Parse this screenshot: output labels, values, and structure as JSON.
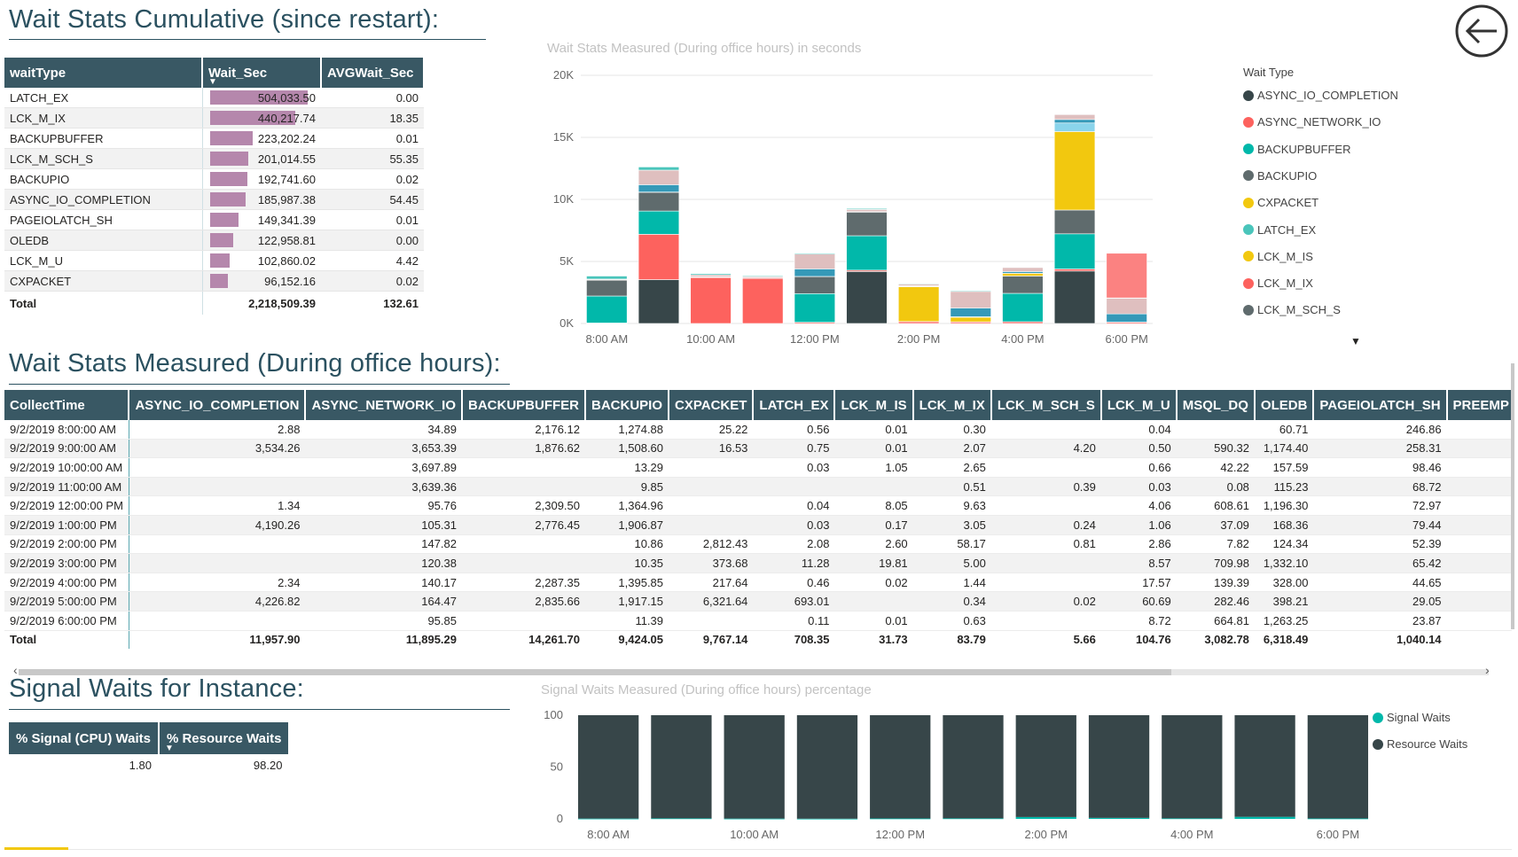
{
  "titles": {
    "cumulative": "Wait Stats Cumulative (since restart):",
    "measured": "Wait Stats Measured (During office hours):",
    "signal": "Signal Waits for Instance:"
  },
  "cumulative_table": {
    "headers": [
      "waitType",
      "Wait_Sec",
      "AVGWait_Sec"
    ],
    "rows": [
      {
        "waitType": "LATCH_EX",
        "wait": "504,033.50",
        "wait_val": 504033.5,
        "avg": "0.00"
      },
      {
        "waitType": "LCK_M_IX",
        "wait": "440,217.74",
        "wait_val": 440217.74,
        "avg": "18.35"
      },
      {
        "waitType": "BACKUPBUFFER",
        "wait": "223,202.24",
        "wait_val": 223202.24,
        "avg": "0.01"
      },
      {
        "waitType": "LCK_M_SCH_S",
        "wait": "201,014.55",
        "wait_val": 201014.55,
        "avg": "55.35"
      },
      {
        "waitType": "BACKUPIO",
        "wait": "192,741.60",
        "wait_val": 192741.6,
        "avg": "0.02"
      },
      {
        "waitType": "ASYNC_IO_COMPLETION",
        "wait": "185,987.38",
        "wait_val": 185987.38,
        "avg": "54.45"
      },
      {
        "waitType": "PAGEIOLATCH_SH",
        "wait": "149,341.39",
        "wait_val": 149341.39,
        "avg": "0.01"
      },
      {
        "waitType": "OLEDB",
        "wait": "122,958.81",
        "wait_val": 122958.81,
        "avg": "0.00"
      },
      {
        "waitType": "LCK_M_U",
        "wait": "102,860.02",
        "wait_val": 102860.02,
        "avg": "4.42"
      },
      {
        "waitType": "CXPACKET",
        "wait": "96,152.16",
        "wait_val": 96152.16,
        "avg": "0.02"
      }
    ],
    "total": {
      "label": "Total",
      "wait": "2,218,509.39",
      "avg": "132.61"
    }
  },
  "measured_table": {
    "headers": [
      "CollectTime",
      "ASYNC_IO_COMPLETION",
      "ASYNC_NETWORK_IO",
      "BACKUPBUFFER",
      "BACKUPIO",
      "CXPACKET",
      "LATCH_EX",
      "LCK_M_IS",
      "LCK_M_IX",
      "LCK_M_SCH_S",
      "LCK_M_U",
      "MSQL_DQ",
      "OLEDB",
      "PAGEIOLATCH_SH",
      "PREEMP"
    ],
    "rows": [
      [
        "9/2/2019 8:00:00 AM",
        "2.88",
        "34.89",
        "2,176.12",
        "1,274.88",
        "25.22",
        "0.56",
        "0.01",
        "0.30",
        "",
        "0.04",
        "",
        "60.71",
        "246.86",
        ""
      ],
      [
        "9/2/2019 9:00:00 AM",
        "3,534.26",
        "3,653.39",
        "1,876.62",
        "1,508.60",
        "16.53",
        "0.75",
        "0.01",
        "2.07",
        "4.20",
        "0.50",
        "590.32",
        "1,174.40",
        "258.31",
        ""
      ],
      [
        "9/2/2019 10:00:00 AM",
        "",
        "3,697.89",
        "",
        "13.29",
        "",
        "0.03",
        "1.05",
        "2.65",
        "",
        "0.66",
        "42.22",
        "157.59",
        "98.46",
        ""
      ],
      [
        "9/2/2019 11:00:00 AM",
        "",
        "3,639.36",
        "",
        "9.85",
        "",
        "",
        "",
        "0.51",
        "0.39",
        "0.03",
        "0.08",
        "115.23",
        "68.72",
        ""
      ],
      [
        "9/2/2019 12:00:00 PM",
        "1.34",
        "95.76",
        "2,309.50",
        "1,364.96",
        "",
        "0.04",
        "8.05",
        "9.63",
        "",
        "4.06",
        "608.61",
        "1,196.30",
        "72.97",
        ""
      ],
      [
        "9/2/2019 1:00:00 PM",
        "4,190.26",
        "105.31",
        "2,776.45",
        "1,906.87",
        "",
        "0.03",
        "0.17",
        "3.05",
        "0.24",
        "1.06",
        "37.09",
        "168.36",
        "79.44",
        ""
      ],
      [
        "9/2/2019 2:00:00 PM",
        "",
        "147.82",
        "",
        "10.86",
        "2,812.43",
        "2.08",
        "2.60",
        "58.17",
        "0.81",
        "2.86",
        "7.82",
        "124.34",
        "52.39",
        ""
      ],
      [
        "9/2/2019 3:00:00 PM",
        "",
        "120.38",
        "",
        "10.35",
        "373.68",
        "11.28",
        "19.81",
        "5.00",
        "",
        "8.57",
        "709.98",
        "1,332.10",
        "65.42",
        ""
      ],
      [
        "9/2/2019 4:00:00 PM",
        "2.34",
        "140.17",
        "2,287.35",
        "1,395.85",
        "217.64",
        "0.46",
        "0.02",
        "1.44",
        "",
        "17.57",
        "139.39",
        "328.00",
        "44.65",
        ""
      ],
      [
        "9/2/2019 5:00:00 PM",
        "4,226.82",
        "164.47",
        "2,835.66",
        "1,917.15",
        "6,321.64",
        "693.01",
        "",
        "0.34",
        "0.02",
        "60.69",
        "282.46",
        "398.21",
        "29.05",
        ""
      ],
      [
        "9/2/2019 6:00:00 PM",
        "",
        "95.85",
        "",
        "11.39",
        "",
        "0.11",
        "0.01",
        "0.63",
        "",
        "8.72",
        "664.81",
        "1,263.25",
        "23.87",
        ""
      ]
    ],
    "total": [
      "Total",
      "11,957.90",
      "11,895.29",
      "14,261.70",
      "9,424.05",
      "9,767.14",
      "708.35",
      "31.73",
      "83.79",
      "5.66",
      "104.76",
      "3,082.78",
      "6,318.49",
      "1,040.14",
      ""
    ]
  },
  "signal_table": {
    "headers": [
      "% Signal (CPU) Waits",
      "% Resource Waits"
    ],
    "values": [
      "1.80",
      "98.20"
    ]
  },
  "colors": {
    "header_bg": "#395864",
    "title_color": "#2b5160",
    "bar_purple": "#b587ac"
  },
  "chart_data": [
    {
      "type": "bar",
      "stacked": true,
      "title": "Wait Stats Measured (During office hours) in seconds",
      "legend_title": "Wait Type",
      "legend_position": "right",
      "categories": [
        "8:00 AM",
        "9:00 AM",
        "10:00 AM",
        "11:00 AM",
        "12:00 PM",
        "1:00 PM",
        "2:00 PM",
        "3:00 PM",
        "4:00 PM",
        "5:00 PM",
        "6:00 PM"
      ],
      "x_tick_labels": [
        "8:00 AM",
        "10:00 AM",
        "12:00 PM",
        "2:00 PM",
        "4:00 PM",
        "6:00 PM"
      ],
      "y_ticks": [
        "0K",
        "5K",
        "10K",
        "15K",
        "20K"
      ],
      "ylim": [
        0,
        20000
      ],
      "series": [
        {
          "name": "ASYNC_IO_COMPLETION",
          "color": "#374649",
          "values": [
            3,
            3534,
            0,
            0,
            1,
            4190,
            0,
            0,
            2,
            4227,
            0
          ]
        },
        {
          "name": "ASYNC_NETWORK_IO",
          "color": "#fd625e",
          "values": [
            35,
            3653,
            3698,
            3639,
            96,
            105,
            148,
            120,
            140,
            164,
            96
          ]
        },
        {
          "name": "BACKUPBUFFER",
          "color": "#01b8aa",
          "values": [
            2176,
            1877,
            0,
            0,
            2310,
            2776,
            0,
            0,
            2287,
            2836,
            0
          ]
        },
        {
          "name": "BACKUPIO",
          "color": "#5f6b6d",
          "values": [
            1275,
            1509,
            13,
            10,
            1365,
            1907,
            11,
            10,
            1396,
            1917,
            11
          ]
        },
        {
          "name": "CXPACKET",
          "color": "#f2c80f",
          "values": [
            25,
            17,
            0,
            0,
            0,
            0,
            2812,
            374,
            218,
            6322,
            0
          ]
        },
        {
          "name": "LATCH_EX",
          "color": "#8ad4eb",
          "values": [
            1,
            1,
            0,
            0,
            0,
            0,
            2,
            11,
            0,
            693,
            0
          ]
        },
        {
          "name": "LCK_M_IS",
          "color": "#fe9666",
          "values": [
            0,
            0,
            1,
            0,
            8,
            0,
            3,
            20,
            0,
            0,
            0
          ]
        },
        {
          "name": "LCK_M_IX",
          "color": "#a66999",
          "values": [
            0,
            2,
            3,
            1,
            10,
            3,
            58,
            5,
            1,
            0,
            1
          ]
        },
        {
          "name": "MSQL_DQ",
          "color": "#3599b8",
          "values": [
            0,
            590,
            42,
            0,
            609,
            37,
            8,
            710,
            139,
            282,
            665
          ]
        },
        {
          "name": "OLEDB",
          "color": "#dfbfbf",
          "values": [
            61,
            1174,
            158,
            115,
            1196,
            168,
            124,
            1332,
            328,
            398,
            1263
          ]
        },
        {
          "name": "PAGEIOLATCH_SH",
          "color": "#4ac5bb",
          "values": [
            247,
            258,
            98,
            69,
            73,
            79,
            52,
            65,
            45,
            29,
            24
          ]
        },
        {
          "name": "PREEMPTIVE",
          "color": "#fb8281",
          "values": [
            0,
            0,
            0,
            0,
            0,
            0,
            0,
            0,
            0,
            0,
            3600
          ]
        }
      ],
      "legend_entries": [
        {
          "name": "ASYNC_IO_COMPLETION",
          "color": "#374649"
        },
        {
          "name": "ASYNC_NETWORK_IO",
          "color": "#fd625e"
        },
        {
          "name": "BACKUPBUFFER",
          "color": "#01b8aa"
        },
        {
          "name": "BACKUPIO",
          "color": "#5f6b6d"
        },
        {
          "name": "CXPACKET",
          "color": "#f2c80f"
        },
        {
          "name": "LATCH_EX",
          "color": "#4ac5bb"
        },
        {
          "name": "LCK_M_IS",
          "color": "#f2c80f"
        },
        {
          "name": "LCK_M_IX",
          "color": "#fd625e"
        },
        {
          "name": "LCK_M_SCH_S",
          "color": "#5f6b6d"
        }
      ]
    },
    {
      "type": "bar",
      "stacked": true,
      "title": "Signal Waits Measured (During office hours) percentage",
      "legend_position": "right",
      "categories": [
        "8:00 AM",
        "9:00 AM",
        "10:00 AM",
        "11:00 AM",
        "12:00 PM",
        "1:00 PM",
        "2:00 PM",
        "3:00 PM",
        "4:00 PM",
        "5:00 PM",
        "6:00 PM"
      ],
      "x_tick_labels": [
        "8:00 AM",
        "10:00 AM",
        "12:00 PM",
        "2:00 PM",
        "4:00 PM",
        "6:00 PM"
      ],
      "y_ticks": [
        "0",
        "50",
        "100"
      ],
      "ylim": [
        0,
        100
      ],
      "series": [
        {
          "name": "Signal Waits",
          "color": "#01b8aa",
          "values": [
            0.3,
            0.5,
            0.3,
            0.2,
            0.4,
            0.5,
            1.8,
            1.0,
            0.5,
            2.0,
            0.4
          ]
        },
        {
          "name": "Resource Waits",
          "color": "#374649",
          "values": [
            99.7,
            99.5,
            99.7,
            99.8,
            99.6,
            99.5,
            98.2,
            99.0,
            99.5,
            98.0,
            99.6
          ]
        }
      ]
    }
  ]
}
